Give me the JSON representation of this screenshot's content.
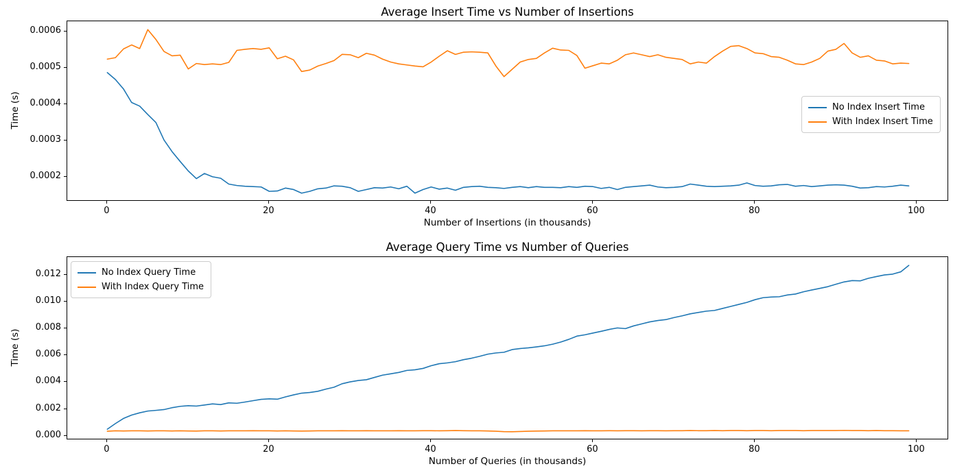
{
  "figure": {
    "background": "#ffffff",
    "text_color": "#000000",
    "spine_color": "#000000",
    "legend_border_color": "#cccccc"
  },
  "chart_data": [
    {
      "type": "line",
      "title": "Average Insert Time vs Number of Insertions",
      "xlabel": "Number of Insertions (in thousands)",
      "ylabel": "Time (s)",
      "grid": false,
      "legend_position": "center right",
      "xlim": [
        -4.95,
        103.95
      ],
      "ylim": [
        0.000133,
        0.000628
      ],
      "xticks": [
        0,
        20,
        40,
        60,
        80,
        100
      ],
      "xtick_labels": [
        "0",
        "20",
        "40",
        "60",
        "80",
        "100"
      ],
      "yticks": [
        0.0002,
        0.0003,
        0.0004,
        0.0005,
        0.0006
      ],
      "ytick_labels": [
        "0.0002",
        "0.0003",
        "0.0004",
        "0.0005",
        "0.0006"
      ],
      "x_start": 0,
      "x_step": 1,
      "series": [
        {
          "name": "No Index Insert Time",
          "color": "#1f77b4",
          "values": [
            0.000487,
            0.000468,
            0.000442,
            0.000405,
            0.000395,
            0.000372,
            0.00035,
            0.000302,
            0.00027,
            0.000243,
            0.000217,
            0.000196,
            0.00021,
            0.000201,
            0.000197,
            0.000181,
            0.000177,
            0.000175,
            0.000174,
            0.000173,
            0.000161,
            0.000162,
            0.00017,
            0.000166,
            0.000156,
            0.000161,
            0.000168,
            0.00017,
            0.000176,
            0.000175,
            0.000171,
            0.000161,
            0.000166,
            0.000171,
            0.00017,
            0.000173,
            0.000168,
            0.000175,
            0.000156,
            0.000166,
            0.000173,
            0.000167,
            0.00017,
            0.000164,
            0.000172,
            0.000174,
            0.000175,
            0.000172,
            0.000171,
            0.000169,
            0.000172,
            0.000174,
            0.000171,
            0.000174,
            0.000172,
            0.000172,
            0.000171,
            0.000174,
            0.000172,
            0.000175,
            0.000174,
            0.000169,
            0.000172,
            0.000166,
            0.000172,
            0.000174,
            0.000176,
            0.000178,
            0.000173,
            0.000171,
            0.000172,
            0.000174,
            0.000181,
            0.000178,
            0.000175,
            0.000174,
            0.000175,
            0.000176,
            0.000178,
            0.000184,
            0.000177,
            0.000175,
            0.000176,
            0.000179,
            0.00018,
            0.000175,
            0.000177,
            0.000174,
            0.000176,
            0.000178,
            0.000179,
            0.000178,
            0.000175,
            0.00017,
            0.000171,
            0.000174,
            0.000173,
            0.000175,
            0.000178,
            0.000176
          ]
        },
        {
          "name": "With Index Insert Time",
          "color": "#ff7f0e",
          "values": [
            0.000524,
            0.000528,
            0.000552,
            0.000563,
            0.000553,
            0.000605,
            0.000578,
            0.000545,
            0.000533,
            0.000535,
            0.000497,
            0.000512,
            0.000509,
            0.000511,
            0.000509,
            0.000515,
            0.000548,
            0.000551,
            0.000553,
            0.000551,
            0.000555,
            0.000525,
            0.000532,
            0.000522,
            0.00049,
            0.000494,
            0.000505,
            0.000512,
            0.00052,
            0.000537,
            0.000536,
            0.000528,
            0.00054,
            0.000535,
            0.000524,
            0.000516,
            0.000511,
            0.000508,
            0.000505,
            0.000503,
            0.000516,
            0.000532,
            0.000547,
            0.000537,
            0.000543,
            0.000544,
            0.000543,
            0.000541,
            0.000505,
            0.000476,
            0.000496,
            0.000516,
            0.000523,
            0.000526,
            0.000541,
            0.000554,
            0.000549,
            0.000548,
            0.000534,
            0.000499,
            0.000506,
            0.000513,
            0.000511,
            0.000521,
            0.000536,
            0.000541,
            0.000536,
            0.000531,
            0.000536,
            0.000529,
            0.000526,
            0.000523,
            0.000511,
            0.000516,
            0.000513,
            0.000531,
            0.000546,
            0.000559,
            0.000561,
            0.000553,
            0.000541,
            0.000539,
            0.000531,
            0.000529,
            0.000521,
            0.000511,
            0.000509,
            0.000516,
            0.000526,
            0.000546,
            0.000551,
            0.000567,
            0.000541,
            0.000529,
            0.000533,
            0.000521,
            0.000519,
            0.000511,
            0.000513,
            0.000512
          ]
        }
      ]
    },
    {
      "type": "line",
      "title": "Average Query Time vs Number of Queries",
      "xlabel": "Number of Queries (in thousands)",
      "ylabel": "Time (s)",
      "grid": false,
      "legend_position": "upper left",
      "xlim": [
        -4.95,
        103.95
      ],
      "ylim": [
        -0.00031,
        0.0133
      ],
      "xticks": [
        0,
        20,
        40,
        60,
        80,
        100
      ],
      "xtick_labels": [
        "0",
        "20",
        "40",
        "60",
        "80",
        "100"
      ],
      "yticks": [
        0.0,
        0.002,
        0.004,
        0.006,
        0.008,
        0.01,
        0.012
      ],
      "ytick_labels": [
        "0.000",
        "0.002",
        "0.004",
        "0.006",
        "0.008",
        "0.010",
        "0.012"
      ],
      "x_start": 0,
      "x_step": 1,
      "series": [
        {
          "name": "No Index Query Time",
          "color": "#1f77b4",
          "values": [
            0.0005,
            0.00092,
            0.0013,
            0.00155,
            0.00172,
            0.00185,
            0.0019,
            0.00196,
            0.0021,
            0.0022,
            0.00225,
            0.00222,
            0.0023,
            0.00238,
            0.00233,
            0.00246,
            0.00243,
            0.00252,
            0.00262,
            0.00272,
            0.00276,
            0.00273,
            0.0029,
            0.00305,
            0.00318,
            0.00323,
            0.00332,
            0.00348,
            0.00362,
            0.00388,
            0.00402,
            0.00412,
            0.00418,
            0.00435,
            0.00452,
            0.00462,
            0.00472,
            0.00487,
            0.00492,
            0.00502,
            0.00522,
            0.00537,
            0.00543,
            0.00552,
            0.00567,
            0.00578,
            0.00592,
            0.00608,
            0.00617,
            0.00622,
            0.00642,
            0.0065,
            0.00655,
            0.00662,
            0.0067,
            0.00682,
            0.00698,
            0.00718,
            0.00742,
            0.00752,
            0.00765,
            0.00778,
            0.00792,
            0.00803,
            0.00798,
            0.00818,
            0.00833,
            0.00848,
            0.00858,
            0.00865,
            0.0088,
            0.00893,
            0.00908,
            0.00918,
            0.00928,
            0.00933,
            0.00948,
            0.00963,
            0.00978,
            0.00993,
            0.01013,
            0.01028,
            0.01033,
            0.01035,
            0.01048,
            0.01055,
            0.01072,
            0.01085,
            0.01097,
            0.0111,
            0.01128,
            0.01145,
            0.01155,
            0.01153,
            0.01172,
            0.01185,
            0.01197,
            0.01203,
            0.0122,
            0.01268
          ]
        },
        {
          "name": "With Index Query Time",
          "color": "#ff7f0e",
          "values": [
            0.00035,
            0.00038,
            0.00037,
            0.00038,
            0.00038,
            0.00037,
            0.00038,
            0.00038,
            0.00037,
            0.00038,
            0.00037,
            0.00036,
            0.00038,
            0.00038,
            0.00037,
            0.00038,
            0.00038,
            0.00038,
            0.00039,
            0.00038,
            0.00038,
            0.00037,
            0.00038,
            0.00037,
            0.00036,
            0.00037,
            0.00038,
            0.00038,
            0.00038,
            0.00039,
            0.00038,
            0.00038,
            0.00039,
            0.00038,
            0.00038,
            0.00038,
            0.00039,
            0.00038,
            0.00038,
            0.00039,
            0.00039,
            0.00038,
            0.00039,
            0.0004,
            0.00039,
            0.00038,
            0.00038,
            0.00037,
            0.00035,
            0.00032,
            0.00031,
            0.00033,
            0.00035,
            0.00036,
            0.00037,
            0.00038,
            0.00038,
            0.00038,
            0.00038,
            0.00039,
            0.00038,
            0.00038,
            0.00039,
            0.00038,
            0.00039,
            0.00039,
            0.00038,
            0.00039,
            0.00039,
            0.00038,
            0.00039,
            0.00039,
            0.0004,
            0.00039,
            0.00039,
            0.0004,
            0.00039,
            0.0004,
            0.0004,
            0.00039,
            0.0004,
            0.0004,
            0.00039,
            0.0004,
            0.0004,
            0.0004,
            0.00039,
            0.0004,
            0.0004,
            0.0004,
            0.0004,
            0.00041,
            0.0004,
            0.0004,
            0.00039,
            0.0004,
            0.00039,
            0.00039,
            0.00038,
            0.00038
          ]
        }
      ]
    }
  ]
}
